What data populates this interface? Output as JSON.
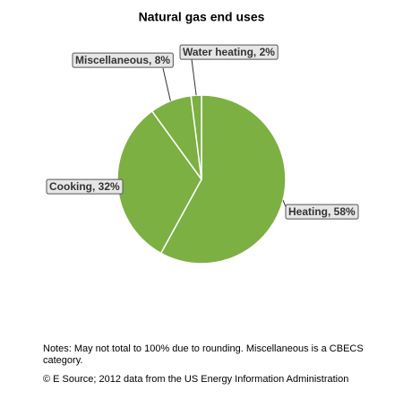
{
  "chart_data": {
    "type": "pie",
    "title": "Natural gas end uses",
    "values": [
      58,
      32,
      8,
      2
    ],
    "value_labels": [
      "Heating, 58%",
      "Cooking, 32%",
      "Miscellaneous, 8%",
      "Water heating, 2%"
    ],
    "color": "#7cb043",
    "notes": "Notes: May not total to 100% due to rounding. Miscellaneous is a CBECS",
    "notes_line2": "category.",
    "source": "© E Source; 2012 data from the US Energy Information Administration"
  }
}
